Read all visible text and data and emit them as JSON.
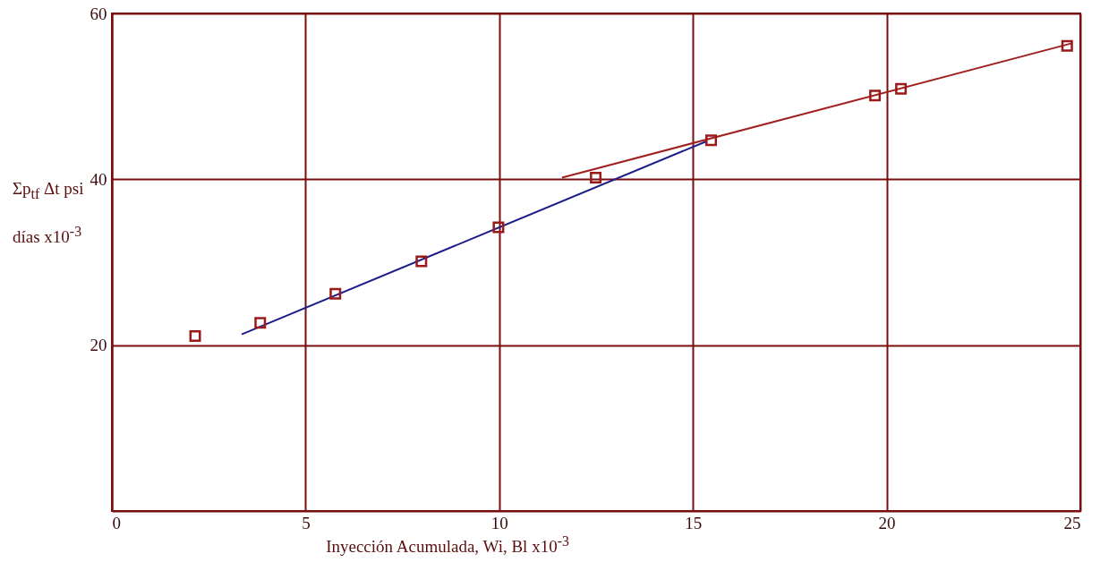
{
  "chart_data": {
    "type": "scatter",
    "xlabel": "Inyección Acumulada, Wi, Bl x10$^{-3}$",
    "ylabel": "Σp$_{tf}$ Δt psi días x10$^{-3}$",
    "xlim": [
      0,
      25
    ],
    "ylim": [
      0,
      60
    ],
    "xticks": [
      0,
      5,
      10,
      15,
      20,
      25
    ],
    "yticks": [
      20,
      40,
      60
    ],
    "grid": true,
    "series": [
      {
        "marker": "square",
        "color": "#9a1a1a",
        "x": [
          2.15,
          3.83,
          5.77,
          7.99,
          9.98,
          12.49,
          15.47,
          19.7,
          20.37,
          24.66
        ],
        "values": [
          21.1,
          22.7,
          26.2,
          30.1,
          34.2,
          40.2,
          44.7,
          50.1,
          50.9,
          56.1
        ]
      },
      {
        "type": "line",
        "marker": "none",
        "color": "#1c1c8a",
        "x": [
          3.35,
          15.36
        ],
        "values": [
          21.3,
          44.6
        ]
      },
      {
        "type": "line",
        "marker": "none",
        "color": "#a02020",
        "x": [
          11.62,
          24.78
        ],
        "values": [
          40.2,
          56.4
        ]
      }
    ]
  }
}
